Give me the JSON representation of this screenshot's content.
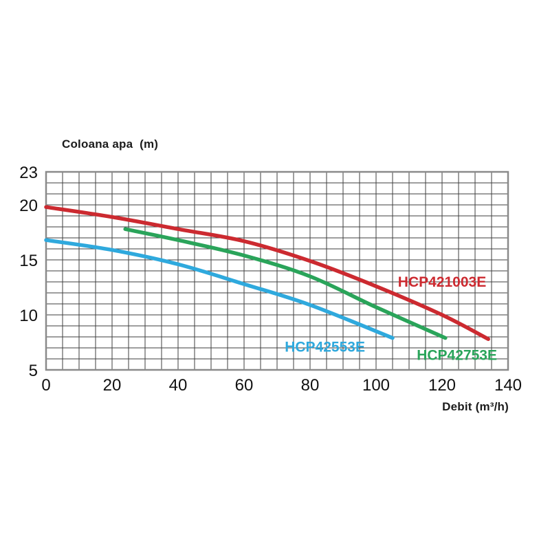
{
  "page": {
    "background_color": "#ffffff",
    "text_color": "#1c1c1c"
  },
  "chart_data": {
    "type": "line",
    "title": "Coloana apa  (m)",
    "xlabel": "Debit (m³/h)",
    "xlim": [
      0,
      140
    ],
    "ylim": [
      5,
      23
    ],
    "x_ticks": [
      0,
      20,
      40,
      60,
      80,
      100,
      120,
      140
    ],
    "y_ticks": [
      5,
      10,
      15,
      20,
      23
    ],
    "grid": {
      "x_step": 5,
      "y_step": 1,
      "line_color": "#3d3d3d",
      "border_color": "#8a8a8a"
    },
    "legend_position": "labels-on-curves",
    "series": [
      {
        "name": "HCP421003E",
        "color": "#cc2a30",
        "points": [
          [
            0,
            19.8
          ],
          [
            20,
            18.9
          ],
          [
            40,
            17.8
          ],
          [
            60,
            16.7
          ],
          [
            80,
            14.9
          ],
          [
            100,
            12.6
          ],
          [
            120,
            10.0
          ],
          [
            134,
            7.8
          ]
        ],
        "label_anchor": {
          "x": 120,
          "y": 13.0
        }
      },
      {
        "name": "HCP42753E",
        "color": "#2aa45a",
        "points": [
          [
            24,
            17.8
          ],
          [
            40,
            16.8
          ],
          [
            60,
            15.4
          ],
          [
            80,
            13.5
          ],
          [
            100,
            10.7
          ],
          [
            121,
            7.9
          ]
        ],
        "label_anchor": {
          "x": 124.5,
          "y": 6.35
        }
      },
      {
        "name": "HCP42553E",
        "color": "#2fa9dd",
        "points": [
          [
            0,
            16.8
          ],
          [
            20,
            15.9
          ],
          [
            40,
            14.6
          ],
          [
            60,
            12.8
          ],
          [
            80,
            10.9
          ],
          [
            105,
            7.9
          ]
        ],
        "label_anchor": {
          "x": 84.5,
          "y": 7.1
        }
      }
    ]
  }
}
